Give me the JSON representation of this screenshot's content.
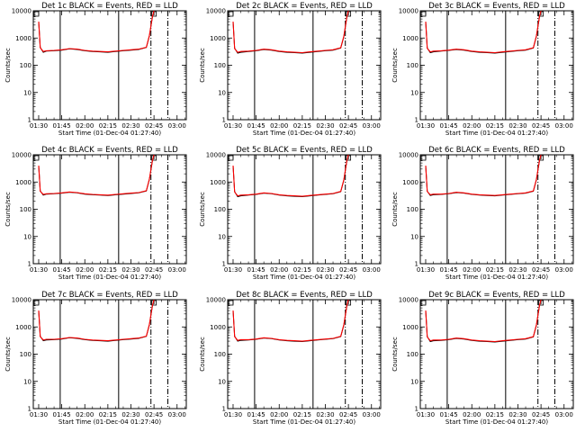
{
  "chart_data": {
    "type": "line",
    "xlabel": "Start Time (01-Dec-04 01:27:40)",
    "ylabel": "Counts/sec",
    "yscale": "log",
    "ylim": [
      1,
      10000
    ],
    "x_ticks": [
      "01:30",
      "01:45",
      "02:00",
      "02:15",
      "02:30",
      "02:45",
      "03:00"
    ],
    "y_ticks": [
      "1",
      "10",
      "100",
      "1000",
      "10000"
    ],
    "x_minutes": [
      0,
      1,
      3,
      5,
      10,
      15,
      20,
      25,
      30,
      35,
      40,
      45,
      50,
      55,
      60,
      65,
      70,
      72,
      74,
      75
    ],
    "vertical_markers": {
      "solid_minutes": [
        14,
        52
      ],
      "dash_dot_minutes": [
        73,
        84
      ]
    },
    "legend_symbol": "square",
    "colors": {
      "events": "#000000",
      "lld": "#ff0000"
    },
    "panels": [
      {
        "title": "Det 1c BLACK = Events, RED = LLD",
        "series": [
          {
            "name": "Events",
            "values": [
              4000,
              450,
              300,
              330,
              340,
              360,
              400,
              380,
              340,
              320,
              310,
              300,
              320,
              340,
              360,
              380,
              450,
              1200,
              6000,
              10000
            ]
          },
          {
            "name": "LLD",
            "values": [
              4000,
              440,
              320,
              340,
              350,
              370,
              410,
              390,
              350,
              330,
              320,
              310,
              330,
              350,
              370,
              390,
              460,
              1250,
              6200,
              10000
            ]
          }
        ]
      },
      {
        "title": "Det 2c BLACK = Events, RED = LLD",
        "series": [
          {
            "name": "Events",
            "values": [
              4000,
              420,
              280,
              300,
              320,
              340,
              380,
              360,
              320,
              300,
              290,
              280,
              300,
              320,
              340,
              360,
              430,
              1100,
              5800,
              10000
            ]
          },
          {
            "name": "LLD",
            "values": [
              4000,
              410,
              300,
              320,
              330,
              350,
              390,
              370,
              330,
              310,
              300,
              290,
              310,
              330,
              350,
              370,
              440,
              1150,
              6000,
              10000
            ]
          }
        ]
      },
      {
        "title": "Det 3c BLACK = Events, RED = LLD",
        "series": [
          {
            "name": "Events",
            "values": [
              4000,
              430,
              290,
              310,
              330,
              350,
              380,
              360,
              320,
              300,
              290,
              280,
              300,
              320,
              340,
              360,
              430,
              1150,
              5900,
              10000
            ]
          },
          {
            "name": "LLD",
            "values": [
              4000,
              420,
              310,
              330,
              340,
              360,
              390,
              370,
              330,
              310,
              300,
              290,
              310,
              330,
              350,
              370,
              440,
              1200,
              6100,
              10000
            ]
          }
        ]
      },
      {
        "title": "Det 4c BLACK = Events, RED = LLD",
        "series": [
          {
            "name": "Events",
            "values": [
              4000,
              470,
              330,
              360,
              370,
              390,
              420,
              400,
              360,
              340,
              330,
              320,
              340,
              360,
              380,
              400,
              470,
              1250,
              6100,
              10000
            ]
          },
          {
            "name": "LLD",
            "values": [
              4000,
              460,
              350,
              370,
              380,
              400,
              430,
              410,
              370,
              350,
              340,
              330,
              350,
              370,
              390,
              410,
              480,
              1300,
              6300,
              10000
            ]
          }
        ]
      },
      {
        "title": "Det 5c BLACK = Events, RED = LLD",
        "series": [
          {
            "name": "Events",
            "values": [
              4000,
              440,
              290,
              310,
              330,
              350,
              390,
              370,
              330,
              310,
              300,
              290,
              310,
              330,
              350,
              370,
              440,
              1150,
              5900,
              10000
            ]
          },
          {
            "name": "LLD",
            "values": [
              4000,
              430,
              310,
              330,
              340,
              360,
              400,
              380,
              340,
              320,
              310,
              300,
              320,
              340,
              360,
              380,
              450,
              1200,
              6100,
              10000
            ]
          }
        ]
      },
      {
        "title": "Det 6c BLACK = Events, RED = LLD",
        "series": [
          {
            "name": "Events",
            "values": [
              4000,
              460,
              320,
              340,
              350,
              370,
              410,
              390,
              350,
              330,
              320,
              310,
              330,
              350,
              370,
              390,
              460,
              1200,
              6000,
              10000
            ]
          },
          {
            "name": "LLD",
            "values": [
              4000,
              450,
              340,
              360,
              360,
              380,
              420,
              400,
              360,
              340,
              330,
              320,
              340,
              360,
              380,
              400,
              470,
              1250,
              6200,
              10000
            ]
          }
        ]
      },
      {
        "title": "Det 7c BLACK = Events, RED = LLD",
        "series": [
          {
            "name": "Events",
            "values": [
              4000,
              450,
              310,
              330,
              340,
              360,
              400,
              380,
              340,
              320,
              310,
              300,
              320,
              340,
              360,
              380,
              450,
              1200,
              6000,
              10000
            ]
          },
          {
            "name": "LLD",
            "values": [
              4000,
              440,
              330,
              350,
              350,
              370,
              410,
              390,
              350,
              330,
              320,
              310,
              330,
              350,
              370,
              390,
              460,
              1250,
              6200,
              10000
            ]
          }
        ]
      },
      {
        "title": "Det 8c BLACK = Events, RED = LLD",
        "series": [
          {
            "name": "Events",
            "values": [
              4000,
              450,
              300,
              320,
              330,
              350,
              390,
              370,
              330,
              310,
              300,
              290,
              310,
              330,
              350,
              370,
              440,
              1150,
              5900,
              10000
            ]
          },
          {
            "name": "LLD",
            "values": [
              4000,
              440,
              320,
              340,
              340,
              360,
              400,
              380,
              340,
              320,
              310,
              300,
              320,
              340,
              360,
              380,
              450,
              1200,
              6100,
              10000
            ]
          }
        ]
      },
      {
        "title": "Det 9c BLACK = Events, RED = LLD",
        "series": [
          {
            "name": "Events",
            "values": [
              4000,
              440,
              290,
              310,
              320,
              340,
              380,
              360,
              320,
              300,
              290,
              280,
              300,
              320,
              340,
              360,
              430,
              1150,
              5900,
              10000
            ]
          },
          {
            "name": "LLD",
            "values": [
              4000,
              430,
              310,
              330,
              330,
              350,
              390,
              370,
              330,
              310,
              300,
              290,
              310,
              330,
              350,
              370,
              440,
              1200,
              6100,
              10000
            ]
          }
        ]
      }
    ]
  }
}
